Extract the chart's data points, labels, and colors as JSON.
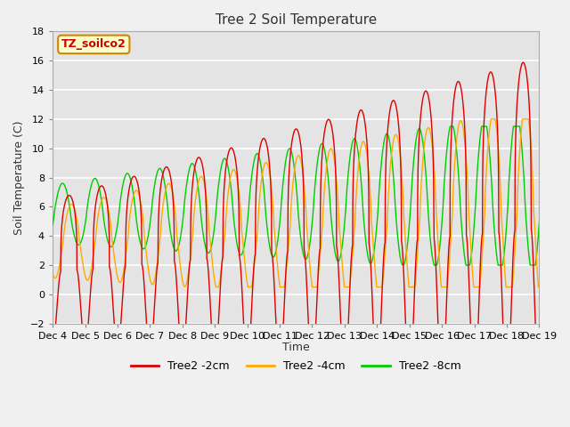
{
  "title": "Tree 2 Soil Temperature",
  "ylabel": "Soil Temperature (C)",
  "xlabel": "Time",
  "annotation": "TZ_soilco2",
  "ylim": [
    -2,
    18
  ],
  "xlim": [
    0,
    360
  ],
  "x_tick_labels": [
    "Dec 4",
    "Dec 5",
    "Dec 6",
    "Dec 7",
    "Dec 8",
    "Dec 9",
    "Dec 10",
    "Dec 11",
    "Dec 12",
    "Dec 13",
    "Dec 14",
    "Dec 15",
    "Dec 16",
    "Dec 17",
    "Dec 18",
    "Dec 19"
  ],
  "x_tick_positions": [
    0,
    24,
    48,
    72,
    96,
    120,
    144,
    168,
    192,
    216,
    240,
    264,
    288,
    312,
    336,
    360
  ],
  "yticks": [
    -2,
    0,
    2,
    4,
    6,
    8,
    10,
    12,
    14,
    16,
    18
  ],
  "line_colors": [
    "#dd0000",
    "#ffaa00",
    "#00cc00"
  ],
  "line_labels": [
    "Tree2 -2cm",
    "Tree2 -4cm",
    "Tree2 -8cm"
  ],
  "bg_color": "#e4e4e4",
  "fig_color": "#f0f0f0",
  "title_fontsize": 11,
  "axis_label_fontsize": 9,
  "tick_fontsize": 8,
  "annotation_bg": "#ffffcc",
  "annotation_border": "#cc8800",
  "annotation_color": "#cc0000",
  "annotation_text": "TZ_soilco2",
  "linewidth": 1.0
}
